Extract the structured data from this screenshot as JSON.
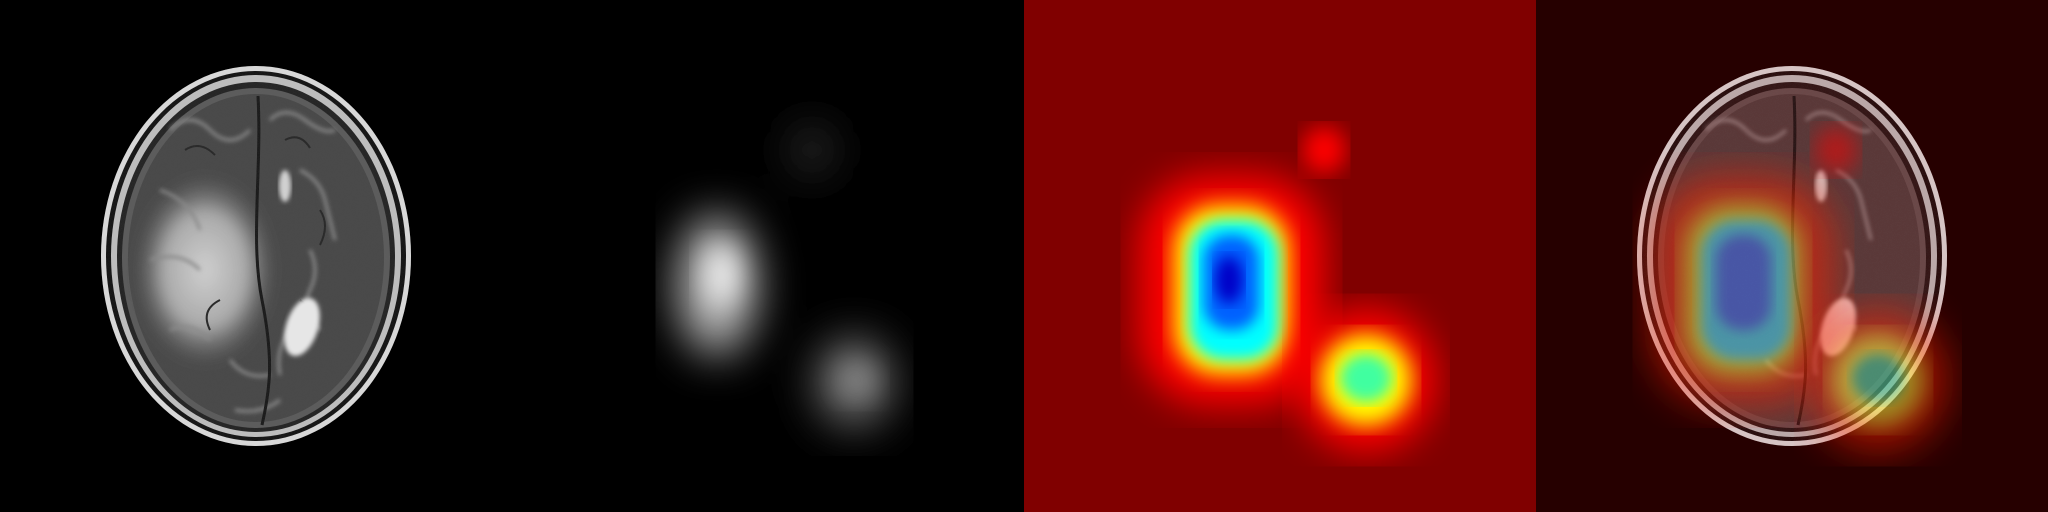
{
  "figure": {
    "panels": [
      {
        "id": "mri",
        "kind": "axial-t2-brain-mri",
        "background": "#000000"
      },
      {
        "id": "grayscale-map",
        "kind": "grayscale-activation-map",
        "background": "#000000"
      },
      {
        "id": "jet-heatmap",
        "kind": "jet-colormap-heatmap",
        "background": "#800000"
      },
      {
        "id": "overlay",
        "kind": "heatmap-overlay-on-mri",
        "background": "#260000"
      }
    ],
    "colors": {
      "jet_low": "#800000",
      "jet_red": "#ff0000",
      "jet_yellow": "#ffff00",
      "jet_cyan": "#00ffff",
      "jet_blue": "#0000d0"
    }
  }
}
